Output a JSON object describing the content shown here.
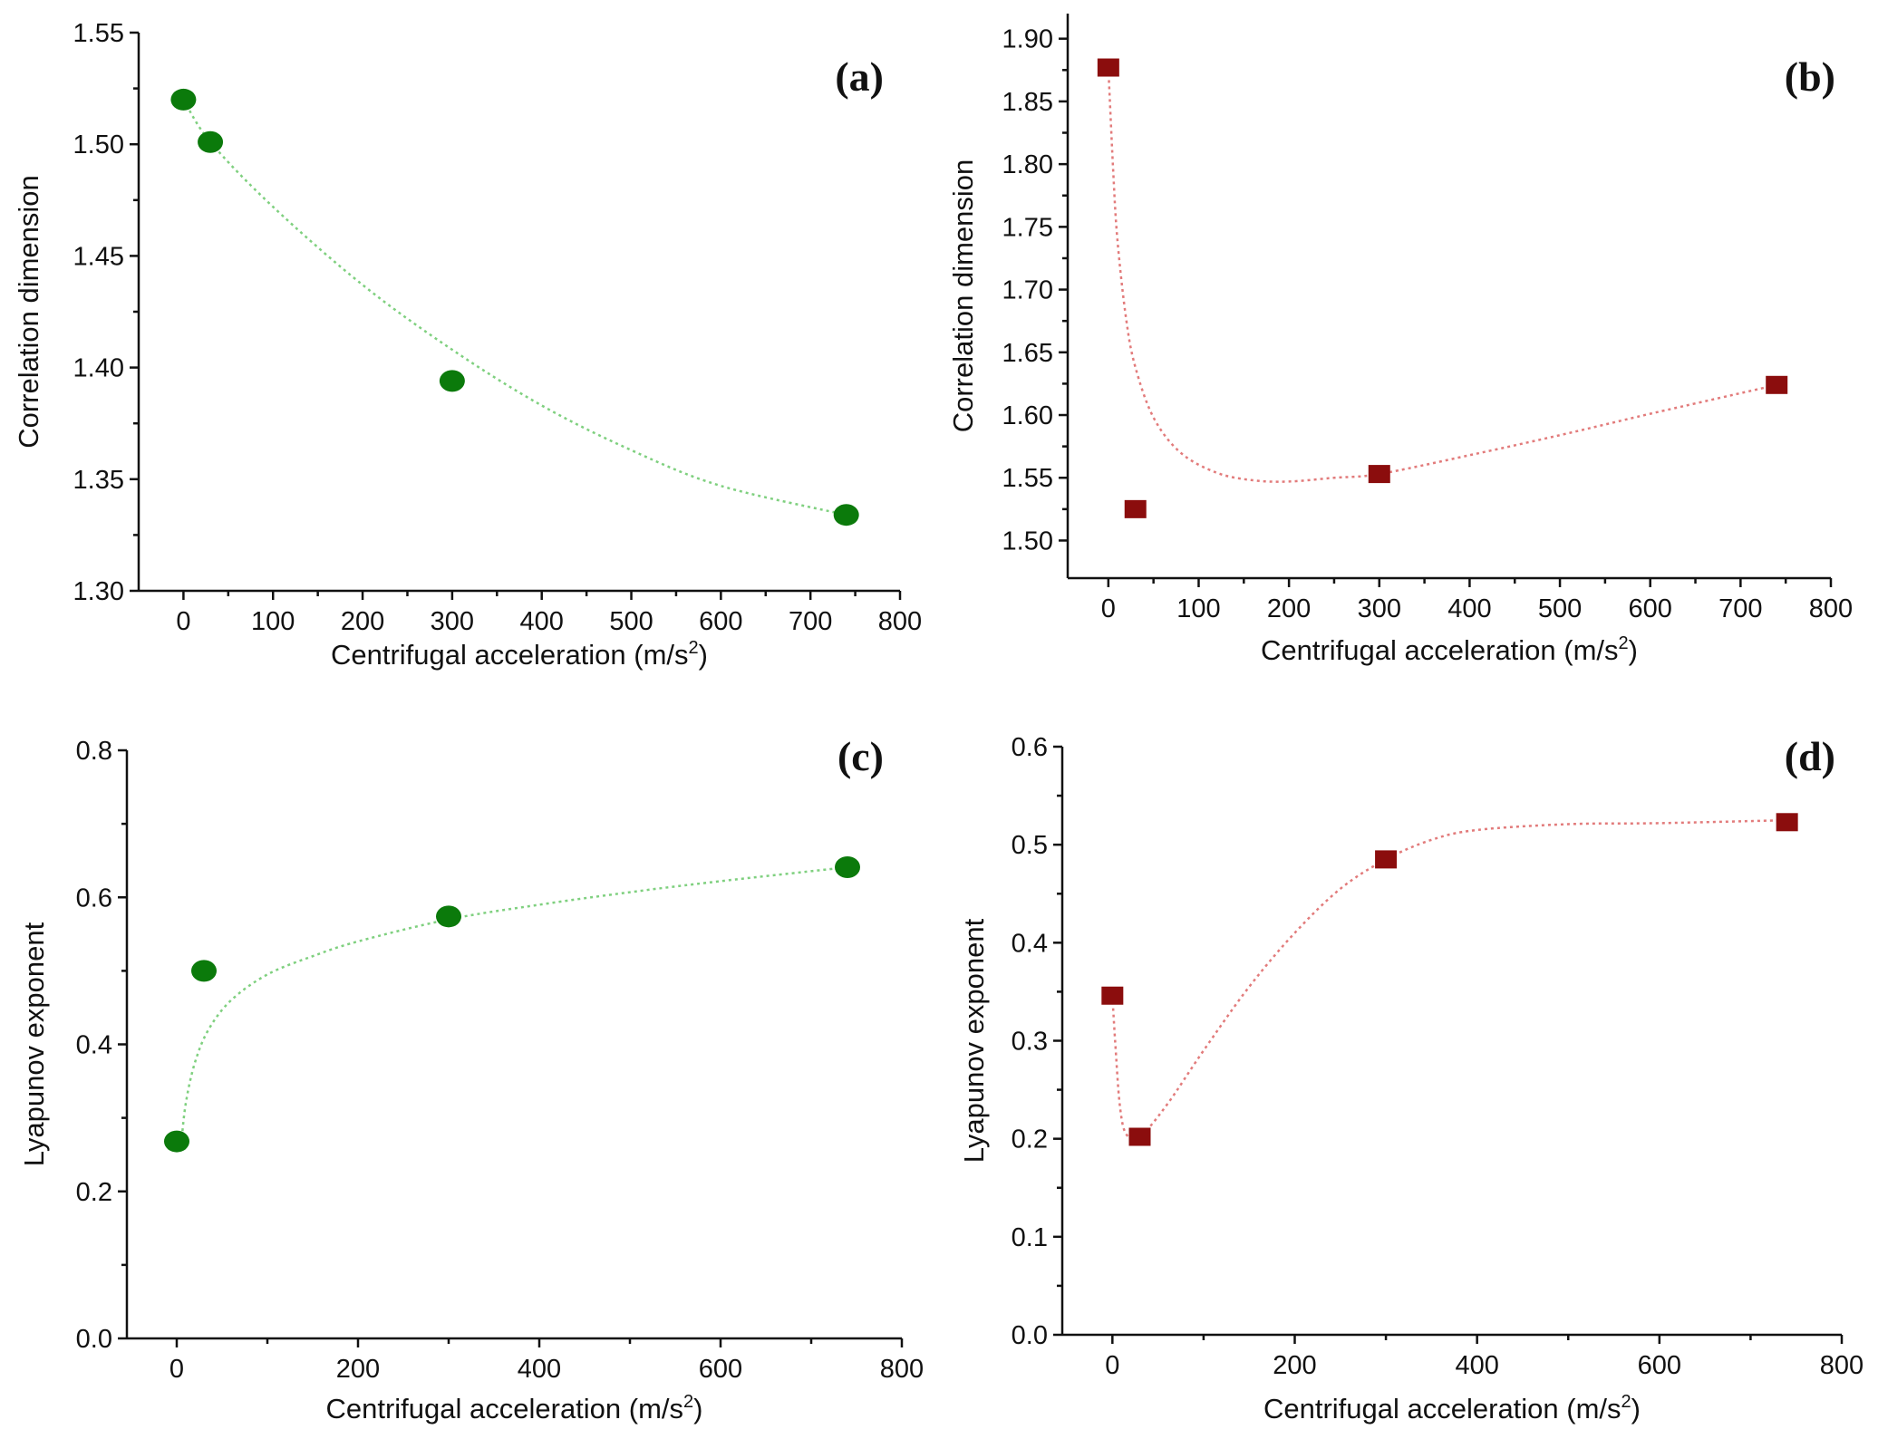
{
  "chart_data": [
    {
      "id": "a",
      "type": "scatter",
      "panel_label": "(a)",
      "xlabel": "Centrifugal acceleration (m/s",
      "xlabel_sup": "2",
      "xlabel_close": ")",
      "ylabel": "Correlation dimension",
      "xlim": [
        -50,
        800
      ],
      "ylim": [
        1.3,
        1.55
      ],
      "xticks": [
        0,
        100,
        200,
        300,
        400,
        500,
        600,
        700,
        800
      ],
      "yticks": [
        1.3,
        1.35,
        1.4,
        1.45,
        1.5,
        1.55
      ],
      "ytick_labels": [
        "1.30",
        "1.35",
        "1.40",
        "1.45",
        "1.50",
        "1.55"
      ],
      "marker": "circle",
      "color": "#0b7a0b",
      "line_color": "#7fd07f",
      "points": [
        [
          0,
          1.52
        ],
        [
          30,
          1.501
        ],
        [
          300,
          1.394
        ],
        [
          740,
          1.334
        ]
      ],
      "trend": [
        [
          0,
          1.52
        ],
        [
          30,
          1.501
        ],
        [
          100,
          1.472
        ],
        [
          200,
          1.437
        ],
        [
          300,
          1.408
        ],
        [
          400,
          1.383
        ],
        [
          500,
          1.363
        ],
        [
          600,
          1.347
        ],
        [
          740,
          1.334
        ]
      ]
    },
    {
      "id": "b",
      "type": "scatter",
      "panel_label": "(b)",
      "xlabel": "Centrifugal acceleration (m/s",
      "xlabel_sup": "2",
      "xlabel_close": ")",
      "ylabel": "Correlation dimension",
      "xlim": [
        -45,
        800
      ],
      "ylim": [
        1.47,
        1.92
      ],
      "xticks": [
        0,
        100,
        200,
        300,
        400,
        500,
        600,
        700,
        800
      ],
      "yticks": [
        1.5,
        1.55,
        1.6,
        1.65,
        1.7,
        1.75,
        1.8,
        1.85,
        1.9
      ],
      "ytick_labels": [
        "1.50",
        "1.55",
        "1.60",
        "1.65",
        "1.70",
        "1.75",
        "1.80",
        "1.85",
        "1.90"
      ],
      "marker": "square",
      "color": "#8b0d0d",
      "line_color": "#e27b7b",
      "points": [
        [
          0,
          1.877
        ],
        [
          30,
          1.525
        ],
        [
          300,
          1.553
        ],
        [
          740,
          1.624
        ]
      ],
      "trend": [
        [
          0,
          1.877
        ],
        [
          5,
          1.8
        ],
        [
          10,
          1.74
        ],
        [
          20,
          1.675
        ],
        [
          30,
          1.638
        ],
        [
          50,
          1.598
        ],
        [
          80,
          1.57
        ],
        [
          120,
          1.554
        ],
        [
          160,
          1.548
        ],
        [
          200,
          1.547
        ],
        [
          250,
          1.55
        ],
        [
          300,
          1.553
        ],
        [
          400,
          1.568
        ],
        [
          500,
          1.584
        ],
        [
          600,
          1.601
        ],
        [
          740,
          1.624
        ]
      ]
    },
    {
      "id": "c",
      "type": "scatter",
      "panel_label": "(c)",
      "xlabel": "Centrifugal acceleration (m/s",
      "xlabel_sup": "2",
      "xlabel_close": ")",
      "ylabel": "Lyapunov exponent",
      "xlim": [
        -55,
        800
      ],
      "ylim": [
        0.0,
        0.8
      ],
      "xticks": [
        0,
        200,
        400,
        600,
        800
      ],
      "yticks": [
        0.0,
        0.2,
        0.4,
        0.6,
        0.8
      ],
      "ytick_labels": [
        "0.0",
        "0.2",
        "0.4",
        "0.6",
        "0.8"
      ],
      "marker": "circle",
      "color": "#0b7a0b",
      "line_color": "#7fd07f",
      "points": [
        [
          0,
          0.268
        ],
        [
          30,
          0.5
        ],
        [
          300,
          0.574
        ],
        [
          740,
          0.641
        ]
      ],
      "trend": [
        [
          5,
          0.265
        ],
        [
          10,
          0.32
        ],
        [
          20,
          0.375
        ],
        [
          35,
          0.42
        ],
        [
          60,
          0.46
        ],
        [
          100,
          0.495
        ],
        [
          150,
          0.52
        ],
        [
          200,
          0.54
        ],
        [
          300,
          0.57
        ],
        [
          400,
          0.59
        ],
        [
          500,
          0.607
        ],
        [
          600,
          0.622
        ],
        [
          740,
          0.641
        ]
      ]
    },
    {
      "id": "d",
      "type": "scatter",
      "panel_label": "(d)",
      "xlabel": "Centrifugal acceleration (m/s",
      "xlabel_sup": "2",
      "xlabel_close": ")",
      "ylabel": "Lyapunov exponent",
      "xlim": [
        -55,
        800
      ],
      "ylim": [
        0.0,
        0.6
      ],
      "xticks": [
        0,
        200,
        400,
        600,
        800
      ],
      "yticks": [
        0.0,
        0.1,
        0.2,
        0.3,
        0.4,
        0.5,
        0.6
      ],
      "ytick_labels": [
        "0.0",
        "0.1",
        "0.2",
        "0.3",
        "0.4",
        "0.5",
        "0.6"
      ],
      "marker": "square",
      "color": "#8b0d0d",
      "line_color": "#e27b7b",
      "points": [
        [
          0,
          0.346
        ],
        [
          30,
          0.202
        ],
        [
          300,
          0.485
        ],
        [
          740,
          0.523
        ]
      ],
      "trend": [
        [
          0,
          0.346
        ],
        [
          3,
          0.3
        ],
        [
          8,
          0.235
        ],
        [
          15,
          0.205
        ],
        [
          30,
          0.202
        ],
        [
          60,
          0.235
        ],
        [
          100,
          0.29
        ],
        [
          150,
          0.355
        ],
        [
          200,
          0.41
        ],
        [
          250,
          0.455
        ],
        [
          300,
          0.485
        ],
        [
          350,
          0.505
        ],
        [
          400,
          0.515
        ],
        [
          500,
          0.521
        ],
        [
          600,
          0.522
        ],
        [
          740,
          0.525
        ]
      ]
    }
  ]
}
